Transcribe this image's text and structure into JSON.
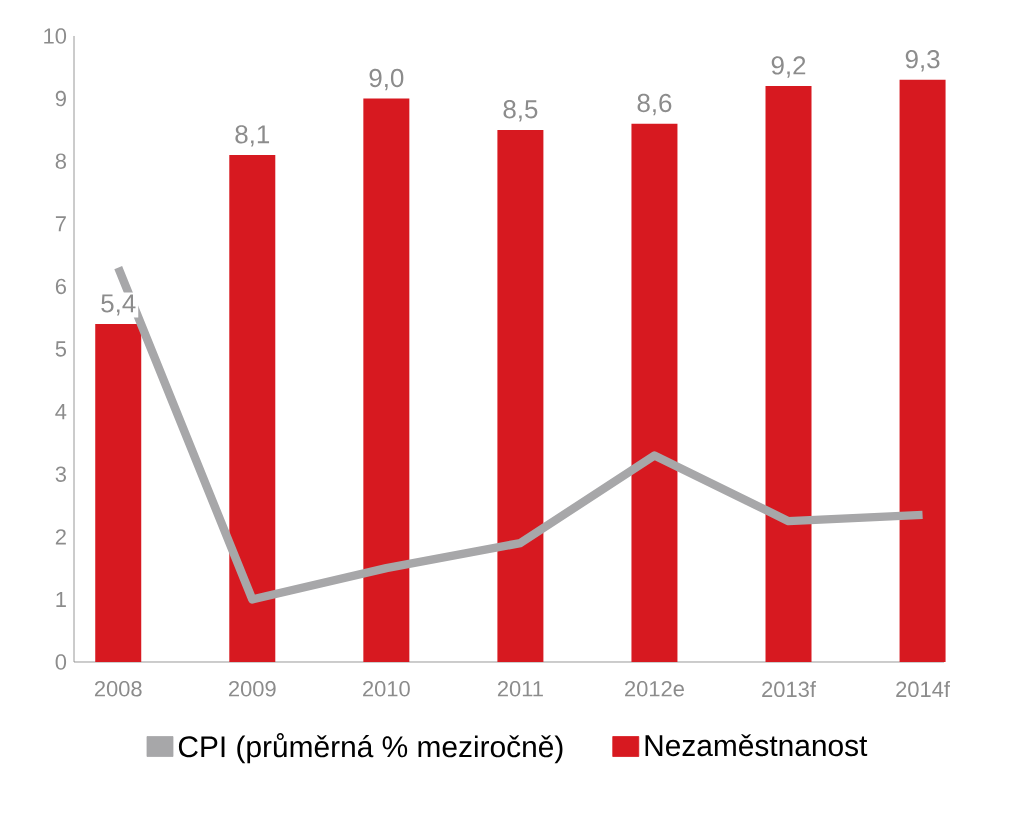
{
  "chart_data": {
    "type": "bar",
    "categories": [
      "2008",
      "2009",
      "2010",
      "2011",
      "2012e",
      "2013f",
      "2014f"
    ],
    "ylim": [
      0,
      10
    ],
    "yticks": [
      0,
      1,
      2,
      3,
      4,
      5,
      6,
      7,
      8,
      9,
      10
    ],
    "legend": "bottom",
    "series": [
      {
        "name": "CPI (průměrná % meziročně)",
        "type": "line",
        "color": "#a7a7a9",
        "values": [
          6.3,
          1.0,
          1.5,
          1.9,
          3.3,
          2.25,
          2.35
        ]
      },
      {
        "name": "Nezaměstnanost",
        "color": "#d71920",
        "values": [
          5.4,
          8.1,
          9.0,
          8.5,
          8.6,
          9.2,
          9.3
        ],
        "value_labels": [
          "5,4",
          "8,1",
          "9,0",
          "8,5",
          "8,6",
          "9,2",
          "9,3"
        ]
      }
    ]
  }
}
